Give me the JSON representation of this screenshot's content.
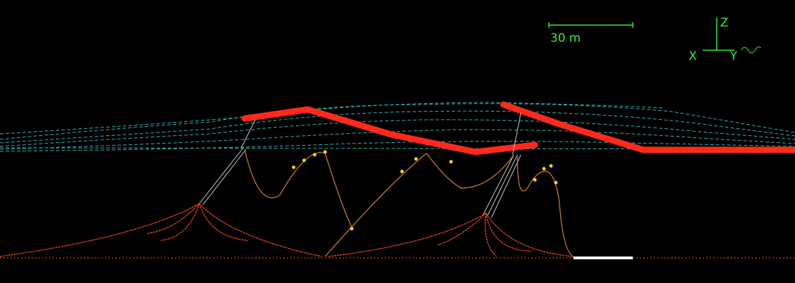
{
  "scale_bar": {
    "label": "30 m"
  },
  "axes": {
    "z": "Z",
    "x": "X",
    "y": "Y"
  }
}
